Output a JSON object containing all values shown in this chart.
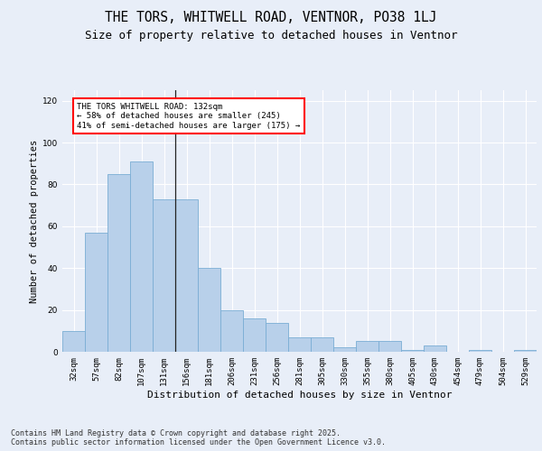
{
  "title1": "THE TORS, WHITWELL ROAD, VENTNOR, PO38 1LJ",
  "title2": "Size of property relative to detached houses in Ventnor",
  "xlabel": "Distribution of detached houses by size in Ventnor",
  "ylabel": "Number of detached properties",
  "categories": [
    "32sqm",
    "57sqm",
    "82sqm",
    "107sqm",
    "131sqm",
    "156sqm",
    "181sqm",
    "206sqm",
    "231sqm",
    "256sqm",
    "281sqm",
    "305sqm",
    "330sqm",
    "355sqm",
    "380sqm",
    "405sqm",
    "430sqm",
    "454sqm",
    "479sqm",
    "504sqm",
    "529sqm"
  ],
  "values": [
    10,
    57,
    85,
    91,
    73,
    73,
    40,
    20,
    16,
    14,
    7,
    7,
    2,
    5,
    5,
    1,
    3,
    0,
    1,
    0,
    1
  ],
  "bar_color": "#b8d0ea",
  "bar_edge_color": "#7aadd4",
  "vline_index": 4,
  "annotation_text": "THE TORS WHITWELL ROAD: 132sqm\n← 58% of detached houses are smaller (245)\n41% of semi-detached houses are larger (175) →",
  "annotation_box_color": "white",
  "annotation_box_edge_color": "red",
  "ylim": [
    0,
    125
  ],
  "yticks": [
    0,
    20,
    40,
    60,
    80,
    100,
    120
  ],
  "footer": "Contains HM Land Registry data © Crown copyright and database right 2025.\nContains public sector information licensed under the Open Government Licence v3.0.",
  "bg_color": "#e8eef8",
  "plot_bg_color": "#e8eef8",
  "title1_fontsize": 10.5,
  "title2_fontsize": 9,
  "xlabel_fontsize": 8,
  "ylabel_fontsize": 7.5,
  "tick_fontsize": 6.5,
  "footer_fontsize": 6,
  "annot_fontsize": 6.5
}
